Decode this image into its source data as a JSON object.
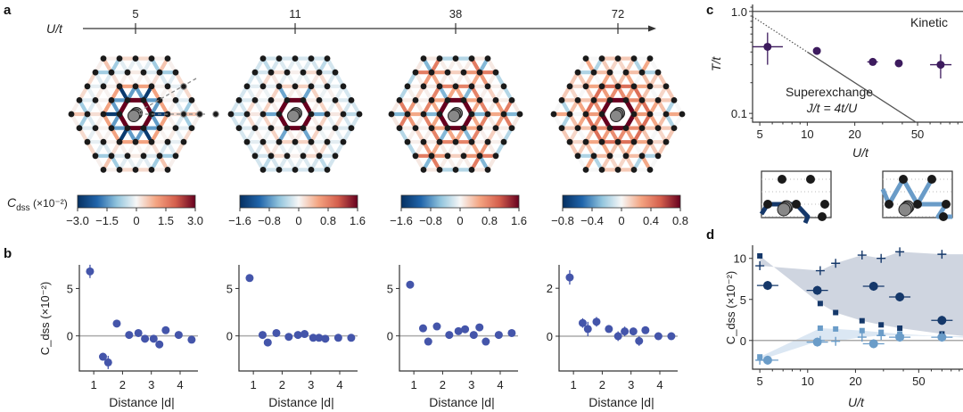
{
  "panel_labels": {
    "a": "a",
    "b": "b",
    "c": "c",
    "d": "d"
  },
  "panel_a": {
    "axis_label": "U/t",
    "ticks": [
      "5",
      "11",
      "38",
      "72"
    ],
    "colorbar_label": "C",
    "colorbar_sub": "dss",
    "colorbar_unit": " (×10⁻²)",
    "colorbars": [
      {
        "range": [
          -3.0,
          3.0
        ],
        "ticks": [
          "−3.0",
          "−1.5",
          "0",
          "1.5",
          "3.0"
        ]
      },
      {
        "range": [
          -1.6,
          1.6
        ],
        "ticks": [
          "−1.6",
          "−0.8",
          "0",
          "0.8",
          "1.6"
        ]
      },
      {
        "range": [
          -1.6,
          1.6
        ],
        "ticks": [
          "−1.6",
          "−0.8",
          "0",
          "0.8",
          "1.6"
        ]
      },
      {
        "range": [
          -0.8,
          0.8
        ],
        "ticks": [
          "−0.8",
          "−0.4",
          "0",
          "0.4",
          "0.8"
        ]
      }
    ]
  },
  "colors": {
    "points_b": "#4455aa",
    "points_c": "#3d1b5e",
    "dark_d": "#15386a",
    "light_d": "#6a9cc8",
    "band_dark": "#cfd5e0",
    "band_light": "#dbe7f3",
    "site": "#1a1a1a",
    "doublon": "#888888"
  },
  "chart_data": [
    {
      "type": "scatter",
      "panel": "b",
      "U_over_t": 5,
      "xlabel": "Distance |d|",
      "ylabel": "C_dss (×10⁻²)",
      "xlim": [
        0.5,
        4.62
      ],
      "ylim": [
        -3.7,
        7.3
      ],
      "xticks": [
        1,
        2,
        3,
        4
      ],
      "yticks": [
        0,
        5
      ],
      "x": [
        0.87,
        1.32,
        1.5,
        1.8,
        2.23,
        2.55,
        2.78,
        3.08,
        3.28,
        3.5,
        3.95,
        4.4
      ],
      "y": [
        6.8,
        -2.2,
        -2.8,
        1.3,
        0.1,
        0.3,
        -0.3,
        -0.3,
        -0.9,
        0.6,
        0.1,
        -0.4
      ],
      "yerr": [
        0.7,
        0.4,
        0.7,
        0.3,
        0.2,
        0.3,
        0.3,
        0.2,
        0.3,
        0.3,
        0.2,
        0.2
      ]
    },
    {
      "type": "scatter",
      "panel": "b",
      "U_over_t": 11,
      "xlabel": "Distance |d|",
      "xlim": [
        0.5,
        4.62
      ],
      "ylim": [
        -3.7,
        7.3
      ],
      "xticks": [
        1,
        2,
        3,
        4
      ],
      "yticks": [
        0,
        5
      ],
      "x": [
        0.87,
        1.32,
        1.5,
        1.8,
        2.23,
        2.55,
        2.78,
        3.08,
        3.28,
        3.5,
        3.95,
        4.4
      ],
      "y": [
        6.1,
        0.1,
        -0.7,
        0.3,
        -0.1,
        0.1,
        0.2,
        -0.2,
        -0.2,
        -0.3,
        -0.2,
        -0.2
      ],
      "yerr": [
        0.2,
        0.2,
        0.2,
        0.2,
        0.1,
        0.1,
        0.1,
        0.1,
        0.1,
        0.1,
        0.1,
        0.1
      ]
    },
    {
      "type": "scatter",
      "panel": "b",
      "U_over_t": 38,
      "xlabel": "Distance |d|",
      "xlim": [
        0.5,
        4.62
      ],
      "ylim": [
        -3.7,
        7.3
      ],
      "xticks": [
        1,
        2,
        3,
        4
      ],
      "yticks": [
        0,
        5
      ],
      "x": [
        0.87,
        1.32,
        1.5,
        1.8,
        2.23,
        2.55,
        2.78,
        3.08,
        3.28,
        3.5,
        3.95,
        4.4
      ],
      "y": [
        5.4,
        0.8,
        -0.6,
        1.0,
        0.1,
        0.5,
        0.7,
        0.1,
        0.9,
        -0.6,
        0.1,
        0.3
      ],
      "yerr": [
        0.4,
        0.2,
        0.3,
        0.2,
        0.2,
        0.2,
        0.2,
        0.2,
        0.2,
        0.2,
        0.2,
        0.2
      ]
    },
    {
      "type": "scatter",
      "panel": "b",
      "U_over_t": 72,
      "xlabel": "Distance |d|",
      "xlim": [
        0.5,
        4.62
      ],
      "ylim": [
        -1.45,
        2.9
      ],
      "xticks": [
        1,
        2,
        3,
        4
      ],
      "yticks": [
        0,
        2
      ],
      "x": [
        0.87,
        1.32,
        1.5,
        1.8,
        2.23,
        2.55,
        2.78,
        3.08,
        3.28,
        3.5,
        3.95,
        4.4
      ],
      "y": [
        2.45,
        0.55,
        0.3,
        0.6,
        0.3,
        0.0,
        0.2,
        0.2,
        -0.2,
        0.25,
        0.0,
        0.0
      ],
      "yerr": [
        0.3,
        0.2,
        0.3,
        0.2,
        0.1,
        0.2,
        0.2,
        0.1,
        0.2,
        0.1,
        0.1,
        0.1
      ]
    },
    {
      "type": "scatter",
      "panel": "c",
      "xlabel": "U/t",
      "ylabel": "T/t",
      "xscale": "log",
      "yscale": "log",
      "xlim": [
        4.5,
        97
      ],
      "ylim": [
        0.082,
        1.17
      ],
      "xticks": [
        5,
        10,
        20,
        50
      ],
      "xtick_labels": [
        "5",
        "10",
        "20",
        "50"
      ],
      "yticks": [
        0.1,
        1.0
      ],
      "ytick_labels": [
        "0.1",
        "1.0"
      ],
      "x": [
        5.6,
        11.5,
        26,
        38,
        70
      ],
      "y": [
        0.45,
        0.41,
        0.32,
        0.31,
        0.3
      ],
      "xerr_lo": [
        4.5,
        11.5,
        24,
        38,
        60
      ],
      "xerr_hi": [
        7.0,
        11.5,
        28,
        38,
        82
      ],
      "yerr_lo": [
        0.3,
        0.41,
        0.32,
        0.31,
        0.22
      ],
      "yerr_hi": [
        0.62,
        0.41,
        0.32,
        0.31,
        0.38
      ],
      "annotations": {
        "kinetic": "Kinetic",
        "superexchange": "Superexchange",
        "formula": "J/t = 4t/U"
      },
      "kinetic_level": 1.0
    },
    {
      "type": "scatter",
      "panel": "d",
      "xlabel": "U/t",
      "ylabel": "C_dss (×10⁻²)",
      "xscale": "log",
      "xlim": [
        4.5,
        95
      ],
      "ylim": [
        -3.5,
        11.6
      ],
      "xticks": [
        5,
        10,
        20,
        50
      ],
      "xtick_labels": [
        "5",
        "10",
        "20",
        "50"
      ],
      "yticks": [
        0,
        5,
        10
      ],
      "ytick_labels": [
        "0",
        "5",
        "10"
      ],
      "series": [
        {
          "marker": "circle",
          "tone": "dark",
          "x": [
            5.6,
            11.5,
            26,
            38,
            70
          ],
          "y": [
            6.7,
            6.1,
            6.6,
            5.3,
            2.45
          ]
        },
        {
          "marker": "circle",
          "tone": "light",
          "x": [
            5.6,
            11.5,
            26,
            38,
            70
          ],
          "y": [
            -2.4,
            -0.2,
            -0.4,
            0.4,
            0.4
          ]
        },
        {
          "marker": "square",
          "tone": "dark",
          "x": [
            5,
            12,
            15,
            22,
            29,
            38,
            70
          ],
          "y": [
            10.3,
            4.5,
            3.4,
            2.4,
            1.9,
            1.5,
            0.8
          ]
        },
        {
          "marker": "plus",
          "tone": "dark",
          "x": [
            5,
            12,
            15,
            22,
            29,
            38,
            70
          ],
          "y": [
            9.1,
            8.5,
            9.4,
            10.4,
            10.0,
            10.8,
            10.5
          ]
        },
        {
          "marker": "square",
          "tone": "light",
          "x": [
            5,
            12,
            15,
            22,
            29,
            38,
            70
          ],
          "y": [
            -2.0,
            1.5,
            1.4,
            1.2,
            1.0,
            0.8,
            0.5
          ]
        },
        {
          "marker": "plus",
          "tone": "light",
          "x": [
            5,
            12,
            15,
            22,
            29,
            38,
            70
          ],
          "y": [
            -2.4,
            0.0,
            -0.1,
            0.4,
            0.6,
            0.6,
            0.5
          ]
        }
      ]
    }
  ]
}
